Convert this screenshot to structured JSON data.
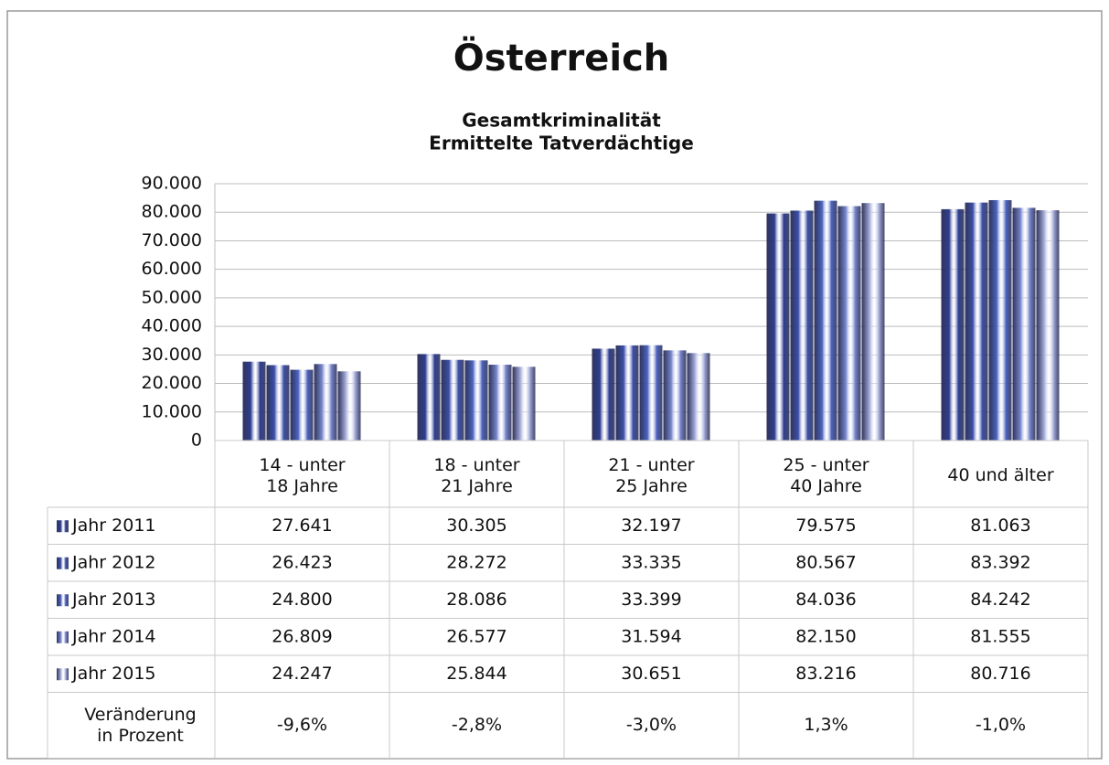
{
  "chart_data": {
    "type": "bar",
    "title": "Österreich",
    "subtitle": [
      "Gesamtkriminalität",
      "Ermittelte Tatverdächtige"
    ],
    "categories": [
      "14 - unter\n18 Jahre",
      "18 - unter\n21 Jahre",
      "21 - unter\n25 Jahre",
      "25 - unter\n40 Jahre",
      "40 und älter"
    ],
    "series": [
      {
        "name": "Jahr 2011",
        "color": "#2f3f92",
        "values": [
          27641,
          30305,
          32197,
          79575,
          81063
        ],
        "value_labels": [
          "27.641",
          "30.305",
          "32.197",
          "79.575",
          "81.063"
        ]
      },
      {
        "name": "Jahr 2012",
        "color": "#3c50ab",
        "values": [
          26423,
          28272,
          33335,
          80567,
          83392
        ],
        "value_labels": [
          "26.423",
          "28.272",
          "33.335",
          "80.567",
          "83.392"
        ]
      },
      {
        "name": "Jahr 2013",
        "color": "#4c64c2",
        "values": [
          24800,
          28086,
          33399,
          84036,
          84242
        ],
        "value_labels": [
          "24.800",
          "28.086",
          "33.399",
          "84.036",
          "84.242"
        ]
      },
      {
        "name": "Jahr 2014",
        "color": "#7887cf",
        "values": [
          26809,
          26577,
          31594,
          82150,
          81555
        ],
        "value_labels": [
          "26.809",
          "26.577",
          "31.594",
          "82.150",
          "81.555"
        ]
      },
      {
        "name": "Jahr 2015",
        "color": "#a8afdc",
        "values": [
          24247,
          25844,
          30651,
          83216,
          80716
        ],
        "value_labels": [
          "24.247",
          "25.844",
          "30.651",
          "83.216",
          "80.716"
        ]
      }
    ],
    "change": {
      "name": "Veränderung\nin Prozent",
      "values": [
        -9.6,
        -2.8,
        -3.0,
        1.3,
        -1.0
      ],
      "value_labels": [
        "-9,6%",
        "-2,8%",
        "-3,0%",
        "1,3%",
        "-1,0%"
      ]
    },
    "ylim": [
      0,
      90000
    ],
    "yticks": [
      0,
      {
        "value": 10000,
        "label": "10.000"
      },
      {
        "value": 20000,
        "label": "20.000"
      },
      {
        "value": 30000,
        "label": "30.000"
      },
      {
        "value": 40000,
        "label": "40.000"
      },
      {
        "value": 50000,
        "label": "50.000"
      },
      {
        "value": 60000,
        "label": "60.000"
      },
      {
        "value": 70000,
        "label": "70.000"
      },
      {
        "value": 80000,
        "label": "80.000"
      },
      {
        "value": 90000,
        "label": "90.000"
      }
    ],
    "grid": true
  }
}
